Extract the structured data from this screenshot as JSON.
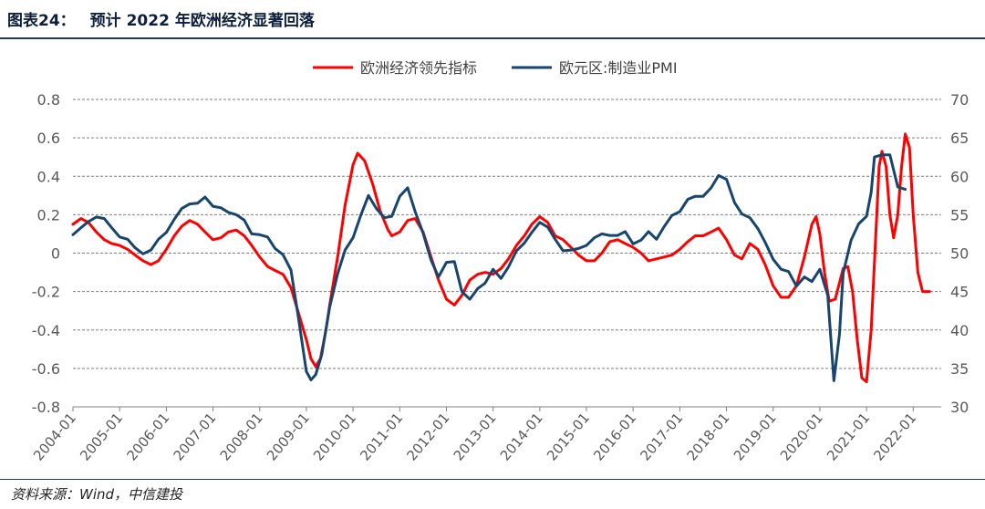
{
  "figure": {
    "number": "图表24：",
    "title": "预计 2022 年欧洲经济显著回落"
  },
  "source": "资料来源：Wind，中信建投",
  "colors": {
    "title": "#0d1f3c",
    "rule": "#1f3a6b",
    "grid": "#7f7f7f",
    "axis_text": "#595959"
  },
  "chart_data": {
    "type": "line",
    "title": "",
    "xlabel": "",
    "ylabel": "",
    "x_ticks": [
      "2004-01",
      "2005-01",
      "2006-01",
      "2007-01",
      "2008-01",
      "2009-01",
      "2010-01",
      "2011-01",
      "2012-01",
      "2013-01",
      "2014-01",
      "2015-01",
      "2016-01",
      "2017-01",
      "2018-01",
      "2019-01",
      "2020-01",
      "2021-01",
      "2022-01"
    ],
    "x_range": [
      2004.0,
      2022.6
    ],
    "left_axis": {
      "ylim": [
        -0.8,
        0.8
      ],
      "ticks": [
        "0.8",
        "0.6",
        "0.4",
        "0.2",
        "0",
        "-0.2",
        "-0.4",
        "-0.6",
        "-0.8"
      ]
    },
    "right_axis": {
      "ylim": [
        30,
        70
      ],
      "ticks": [
        "70",
        "65",
        "60",
        "55",
        "50",
        "45",
        "40",
        "35",
        "30"
      ]
    },
    "grid": true,
    "legend_position": "top-center",
    "series": [
      {
        "name": "欧洲经济领先指标",
        "axis": "left",
        "color": "#ff0000",
        "points": [
          [
            2004.0,
            0.15
          ],
          [
            2004.17,
            0.18
          ],
          [
            2004.33,
            0.16
          ],
          [
            2004.5,
            0.11
          ],
          [
            2004.67,
            0.07
          ],
          [
            2004.83,
            0.05
          ],
          [
            2005.0,
            0.04
          ],
          [
            2005.17,
            0.02
          ],
          [
            2005.33,
            -0.01
          ],
          [
            2005.5,
            -0.04
          ],
          [
            2005.67,
            -0.06
          ],
          [
            2005.83,
            -0.04
          ],
          [
            2006.0,
            0.02
          ],
          [
            2006.17,
            0.09
          ],
          [
            2006.33,
            0.14
          ],
          [
            2006.5,
            0.17
          ],
          [
            2006.67,
            0.15
          ],
          [
            2006.83,
            0.11
          ],
          [
            2007.0,
            0.07
          ],
          [
            2007.17,
            0.08
          ],
          [
            2007.33,
            0.11
          ],
          [
            2007.5,
            0.12
          ],
          [
            2007.67,
            0.09
          ],
          [
            2007.83,
            0.04
          ],
          [
            2008.0,
            -0.02
          ],
          [
            2008.17,
            -0.07
          ],
          [
            2008.33,
            -0.09
          ],
          [
            2008.5,
            -0.11
          ],
          [
            2008.67,
            -0.18
          ],
          [
            2008.83,
            -0.31
          ],
          [
            2009.0,
            -0.45
          ],
          [
            2009.1,
            -0.55
          ],
          [
            2009.2,
            -0.59
          ],
          [
            2009.3,
            -0.55
          ],
          [
            2009.42,
            -0.4
          ],
          [
            2009.5,
            -0.27
          ],
          [
            2009.67,
            -0.02
          ],
          [
            2009.83,
            0.25
          ],
          [
            2010.0,
            0.46
          ],
          [
            2010.1,
            0.52
          ],
          [
            2010.25,
            0.48
          ],
          [
            2010.42,
            0.36
          ],
          [
            2010.58,
            0.22
          ],
          [
            2010.75,
            0.12
          ],
          [
            2010.83,
            0.09
          ],
          [
            2011.0,
            0.11
          ],
          [
            2011.17,
            0.17
          ],
          [
            2011.33,
            0.18
          ],
          [
            2011.5,
            0.11
          ],
          [
            2011.67,
            -0.02
          ],
          [
            2011.83,
            -0.14
          ],
          [
            2012.0,
            -0.24
          ],
          [
            2012.17,
            -0.27
          ],
          [
            2012.33,
            -0.22
          ],
          [
            2012.5,
            -0.14
          ],
          [
            2012.67,
            -0.11
          ],
          [
            2012.83,
            -0.1
          ],
          [
            2013.0,
            -0.11
          ],
          [
            2013.17,
            -0.08
          ],
          [
            2013.33,
            -0.03
          ],
          [
            2013.5,
            0.04
          ],
          [
            2013.67,
            0.09
          ],
          [
            2013.83,
            0.15
          ],
          [
            2014.0,
            0.19
          ],
          [
            2014.17,
            0.16
          ],
          [
            2014.33,
            0.09
          ],
          [
            2014.5,
            0.07
          ],
          [
            2014.67,
            0.03
          ],
          [
            2014.83,
            -0.01
          ],
          [
            2015.0,
            -0.04
          ],
          [
            2015.17,
            -0.04
          ],
          [
            2015.33,
            0.0
          ],
          [
            2015.5,
            0.06
          ],
          [
            2015.67,
            0.07
          ],
          [
            2015.83,
            0.05
          ],
          [
            2016.0,
            0.03
          ],
          [
            2016.17,
            0.0
          ],
          [
            2016.33,
            -0.04
          ],
          [
            2016.5,
            -0.03
          ],
          [
            2016.67,
            -0.02
          ],
          [
            2016.83,
            -0.01
          ],
          [
            2017.0,
            0.02
          ],
          [
            2017.17,
            0.06
          ],
          [
            2017.33,
            0.09
          ],
          [
            2017.5,
            0.09
          ],
          [
            2017.67,
            0.11
          ],
          [
            2017.83,
            0.13
          ],
          [
            2018.0,
            0.07
          ],
          [
            2018.17,
            -0.01
          ],
          [
            2018.33,
            -0.03
          ],
          [
            2018.5,
            0.05
          ],
          [
            2018.67,
            0.02
          ],
          [
            2018.83,
            -0.06
          ],
          [
            2019.0,
            -0.17
          ],
          [
            2019.17,
            -0.23
          ],
          [
            2019.33,
            -0.23
          ],
          [
            2019.5,
            -0.17
          ],
          [
            2019.67,
            -0.02
          ],
          [
            2019.83,
            0.15
          ],
          [
            2019.92,
            0.19
          ],
          [
            2020.0,
            0.1
          ],
          [
            2020.1,
            -0.1
          ],
          [
            2020.2,
            -0.25
          ],
          [
            2020.33,
            -0.24
          ],
          [
            2020.5,
            -0.08
          ],
          [
            2020.6,
            -0.07
          ],
          [
            2020.7,
            -0.2
          ],
          [
            2020.8,
            -0.45
          ],
          [
            2020.9,
            -0.65
          ],
          [
            2021.0,
            -0.67
          ],
          [
            2021.1,
            -0.4
          ],
          [
            2021.2,
            0.1
          ],
          [
            2021.27,
            0.45
          ],
          [
            2021.33,
            0.53
          ],
          [
            2021.42,
            0.45
          ],
          [
            2021.5,
            0.2
          ],
          [
            2021.58,
            0.08
          ],
          [
            2021.67,
            0.2
          ],
          [
            2021.75,
            0.45
          ],
          [
            2021.83,
            0.62
          ],
          [
            2021.92,
            0.55
          ],
          [
            2022.0,
            0.2
          ],
          [
            2022.1,
            -0.1
          ],
          [
            2022.2,
            -0.2
          ],
          [
            2022.35,
            -0.2
          ]
        ]
      },
      {
        "name": "欧元区:制造业PMI",
        "axis": "right",
        "color": "#17456e",
        "points": [
          [
            2004.0,
            52.4
          ],
          [
            2004.17,
            53.3
          ],
          [
            2004.33,
            54.1
          ],
          [
            2004.5,
            54.7
          ],
          [
            2004.67,
            54.5
          ],
          [
            2004.83,
            53.3
          ],
          [
            2005.0,
            52.1
          ],
          [
            2005.17,
            51.8
          ],
          [
            2005.33,
            50.7
          ],
          [
            2005.5,
            49.9
          ],
          [
            2005.67,
            50.4
          ],
          [
            2005.83,
            51.8
          ],
          [
            2006.0,
            52.7
          ],
          [
            2006.17,
            54.4
          ],
          [
            2006.33,
            55.8
          ],
          [
            2006.5,
            56.4
          ],
          [
            2006.67,
            56.5
          ],
          [
            2006.83,
            57.3
          ],
          [
            2007.0,
            56.1
          ],
          [
            2007.17,
            55.9
          ],
          [
            2007.33,
            55.3
          ],
          [
            2007.5,
            55.0
          ],
          [
            2007.67,
            54.3
          ],
          [
            2007.83,
            52.5
          ],
          [
            2008.0,
            52.4
          ],
          [
            2008.17,
            52.1
          ],
          [
            2008.33,
            50.6
          ],
          [
            2008.5,
            49.8
          ],
          [
            2008.67,
            47.8
          ],
          [
            2008.83,
            41.6
          ],
          [
            2009.0,
            34.6
          ],
          [
            2009.1,
            33.5
          ],
          [
            2009.2,
            34.2
          ],
          [
            2009.33,
            36.8
          ],
          [
            2009.5,
            43.0
          ],
          [
            2009.67,
            47.3
          ],
          [
            2009.83,
            50.4
          ],
          [
            2010.0,
            52.0
          ],
          [
            2010.17,
            55.0
          ],
          [
            2010.33,
            57.5
          ],
          [
            2010.5,
            55.8
          ],
          [
            2010.67,
            54.6
          ],
          [
            2010.83,
            54.8
          ],
          [
            2011.0,
            57.4
          ],
          [
            2011.17,
            58.5
          ],
          [
            2011.33,
            55.4
          ],
          [
            2011.5,
            52.6
          ],
          [
            2011.67,
            49.1
          ],
          [
            2011.83,
            46.9
          ],
          [
            2012.0,
            48.8
          ],
          [
            2012.17,
            48.9
          ],
          [
            2012.33,
            45.0
          ],
          [
            2012.5,
            44.0
          ],
          [
            2012.67,
            45.4
          ],
          [
            2012.83,
            46.1
          ],
          [
            2013.0,
            47.9
          ],
          [
            2013.17,
            46.7
          ],
          [
            2013.33,
            48.2
          ],
          [
            2013.5,
            50.3
          ],
          [
            2013.67,
            51.3
          ],
          [
            2013.83,
            52.7
          ],
          [
            2014.0,
            54.0
          ],
          [
            2014.17,
            53.4
          ],
          [
            2014.33,
            51.8
          ],
          [
            2014.5,
            50.3
          ],
          [
            2014.67,
            50.4
          ],
          [
            2014.83,
            50.6
          ],
          [
            2015.0,
            51.0
          ],
          [
            2015.17,
            52.0
          ],
          [
            2015.33,
            52.5
          ],
          [
            2015.5,
            52.3
          ],
          [
            2015.67,
            52.3
          ],
          [
            2015.83,
            52.8
          ],
          [
            2016.0,
            51.2
          ],
          [
            2016.17,
            51.7
          ],
          [
            2016.33,
            52.8
          ],
          [
            2016.5,
            51.8
          ],
          [
            2016.67,
            53.5
          ],
          [
            2016.83,
            54.9
          ],
          [
            2017.0,
            55.4
          ],
          [
            2017.17,
            57.0
          ],
          [
            2017.33,
            57.4
          ],
          [
            2017.5,
            57.4
          ],
          [
            2017.67,
            58.5
          ],
          [
            2017.83,
            60.1
          ],
          [
            2018.0,
            59.6
          ],
          [
            2018.17,
            56.6
          ],
          [
            2018.33,
            55.1
          ],
          [
            2018.5,
            54.6
          ],
          [
            2018.67,
            53.2
          ],
          [
            2018.83,
            51.4
          ],
          [
            2019.0,
            49.2
          ],
          [
            2019.17,
            47.9
          ],
          [
            2019.33,
            47.6
          ],
          [
            2019.5,
            45.7
          ],
          [
            2019.67,
            46.9
          ],
          [
            2019.83,
            46.3
          ],
          [
            2020.0,
            47.9
          ],
          [
            2020.17,
            44.5
          ],
          [
            2020.3,
            33.4
          ],
          [
            2020.42,
            39.4
          ],
          [
            2020.5,
            47.4
          ],
          [
            2020.67,
            51.7
          ],
          [
            2020.83,
            53.8
          ],
          [
            2021.0,
            54.8
          ],
          [
            2021.1,
            57.9
          ],
          [
            2021.17,
            62.5
          ],
          [
            2021.33,
            62.8
          ],
          [
            2021.5,
            62.8
          ],
          [
            2021.67,
            58.6
          ],
          [
            2021.83,
            58.3
          ]
        ]
      }
    ]
  }
}
